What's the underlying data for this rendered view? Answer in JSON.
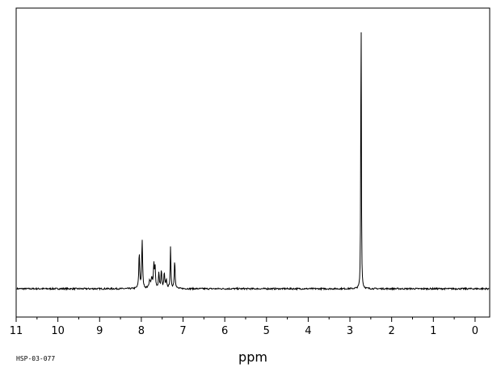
{
  "sample_id": "HSP-03-077",
  "chart_data": {
    "type": "line",
    "title": "",
    "xlabel": "ppm",
    "ylabel": "",
    "xlim": [
      11.0,
      -0.35
    ],
    "ylim": [
      -0.12,
      1.0
    ],
    "x_ticks": [
      11,
      10,
      9,
      8,
      7,
      6,
      5,
      4,
      3,
      2,
      1,
      0
    ],
    "grid": false,
    "baseline": 0,
    "peaks": [
      {
        "ppm": 8.05,
        "height": 0.14,
        "width": 0.012
      },
      {
        "ppm": 7.98,
        "height": 0.19,
        "width": 0.012
      },
      {
        "ppm": 7.8,
        "height": 0.03,
        "width": 0.02
      },
      {
        "ppm": 7.75,
        "height": 0.04,
        "width": 0.015
      },
      {
        "ppm": 7.7,
        "height": 0.09,
        "width": 0.012
      },
      {
        "ppm": 7.67,
        "height": 0.08,
        "width": 0.012
      },
      {
        "ppm": 7.58,
        "height": 0.06,
        "width": 0.012
      },
      {
        "ppm": 7.52,
        "height": 0.07,
        "width": 0.012
      },
      {
        "ppm": 7.45,
        "height": 0.06,
        "width": 0.012
      },
      {
        "ppm": 7.4,
        "height": 0.03,
        "width": 0.015
      },
      {
        "ppm": 7.3,
        "height": 0.16,
        "width": 0.01
      },
      {
        "ppm": 7.2,
        "height": 0.11,
        "width": 0.012
      },
      {
        "ppm": 2.73,
        "height": 1.0,
        "width": 0.006
      },
      {
        "ppm": 2.74,
        "height": 0.42,
        "width": 0.006
      }
    ]
  }
}
